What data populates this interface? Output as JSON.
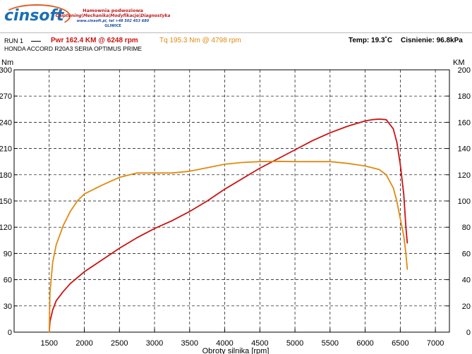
{
  "header": {
    "logo_text": "cinsoft",
    "tagline1": "Hamownia podwoziowa",
    "tagline2": "Chiptuning|Mechanika|Modyfikacje|Diagnostyka",
    "tagline3": "www.cinsoft.pl, tel +48 502 453 680",
    "tagline4": "GLIWICE",
    "run_label": "RUN 1",
    "pwr_text": "Pwr  162.4 KM @ 6248 rpm",
    "tq_text": "Tq 195.3 Nm @ 4798 rpm",
    "temp_text": "Temp: 19.3˚C",
    "pressure_text": "Cisnienie: 96.8kPa",
    "car_text": "HONDA ACCORD R20A3   SERIA OPTIMUS PRIME",
    "colors": {
      "power": "#cc1111",
      "torque": "#e08a10",
      "logo": "#1a6fb5"
    }
  },
  "chart_data": {
    "type": "line",
    "xlabel": "Obroty silnika [rpm]",
    "y_left_label": "Nm",
    "y_right_label": "KM",
    "xlim": [
      1000,
      7200
    ],
    "x_ticks": [
      1500,
      2000,
      2500,
      3000,
      3500,
      4000,
      4500,
      5000,
      5500,
      6000,
      6500,
      7000
    ],
    "y_left_lim": [
      0,
      300
    ],
    "y_left_ticks": [
      0,
      30,
      60,
      90,
      120,
      150,
      180,
      210,
      240,
      270,
      300
    ],
    "y_right_lim": [
      0,
      200
    ],
    "y_right_ticks": [
      0,
      20,
      40,
      60,
      80,
      100,
      120,
      140,
      160,
      180,
      200
    ],
    "grid": "dashed",
    "series": [
      {
        "name": "Pwr",
        "axis": "right",
        "color": "#cc1111",
        "x": [
          1500,
          1510,
          1550,
          1600,
          1700,
          1800,
          2000,
          2250,
          2500,
          2750,
          3000,
          3250,
          3500,
          3750,
          4000,
          4250,
          4500,
          4750,
          5000,
          5250,
          5500,
          5750,
          6000,
          6100,
          6200,
          6300,
          6400,
          6450,
          6500,
          6550,
          6580,
          6600
        ],
        "values": [
          0,
          8,
          17,
          24,
          31,
          37,
          46,
          55,
          64,
          72,
          79,
          85,
          92,
          100,
          109,
          117,
          125,
          132,
          139,
          146,
          152,
          157,
          161,
          162,
          162.4,
          162,
          155,
          145,
          128,
          105,
          80,
          68
        ]
      },
      {
        "name": "Tq",
        "axis": "left",
        "color": "#e08a10",
        "x": [
          1500,
          1510,
          1550,
          1600,
          1700,
          1800,
          1900,
          2000,
          2250,
          2500,
          2750,
          3000,
          3250,
          3500,
          3750,
          4000,
          4250,
          4500,
          4750,
          5000,
          5250,
          5500,
          5750,
          6000,
          6200,
          6300,
          6400,
          6450,
          6500,
          6550,
          6580,
          6600
        ],
        "values": [
          0,
          45,
          80,
          100,
          122,
          138,
          150,
          158,
          168,
          177,
          182,
          182,
          182,
          184,
          188,
          192,
          194,
          195,
          195.3,
          195,
          195,
          195,
          193,
          190,
          186,
          180,
          165,
          150,
          130,
          110,
          90,
          72
        ]
      }
    ]
  }
}
